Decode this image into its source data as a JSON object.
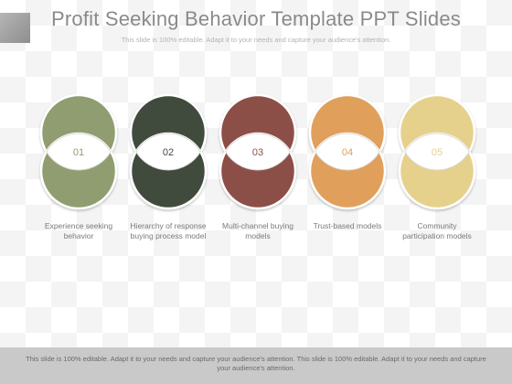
{
  "slide": {
    "title": "Profit Seeking Behavior Template PPT Slides",
    "subtitle": "This slide is 100% editable. Adapt it to your needs and capture your audience's attention."
  },
  "steps": [
    {
      "number": "01",
      "label": "Experience seeking behavior",
      "color": "#909d6f"
    },
    {
      "number": "02",
      "label": "Hierarchy of response buying process model",
      "color": "#3f4b3e"
    },
    {
      "number": "03",
      "label": "Multi-channel buying models",
      "color": "#8c4f47"
    },
    {
      "number": "04",
      "label": "Trust-based models",
      "color": "#e0a05c"
    },
    {
      "number": "05",
      "label": "Community participation models",
      "color": "#e6d18c"
    }
  ],
  "footer": {
    "text": "This slide is 100% editable. Adapt it to your needs and capture your audience's attention. This slide is 100% editable. Adapt it to your needs and capture your audience's attention."
  }
}
